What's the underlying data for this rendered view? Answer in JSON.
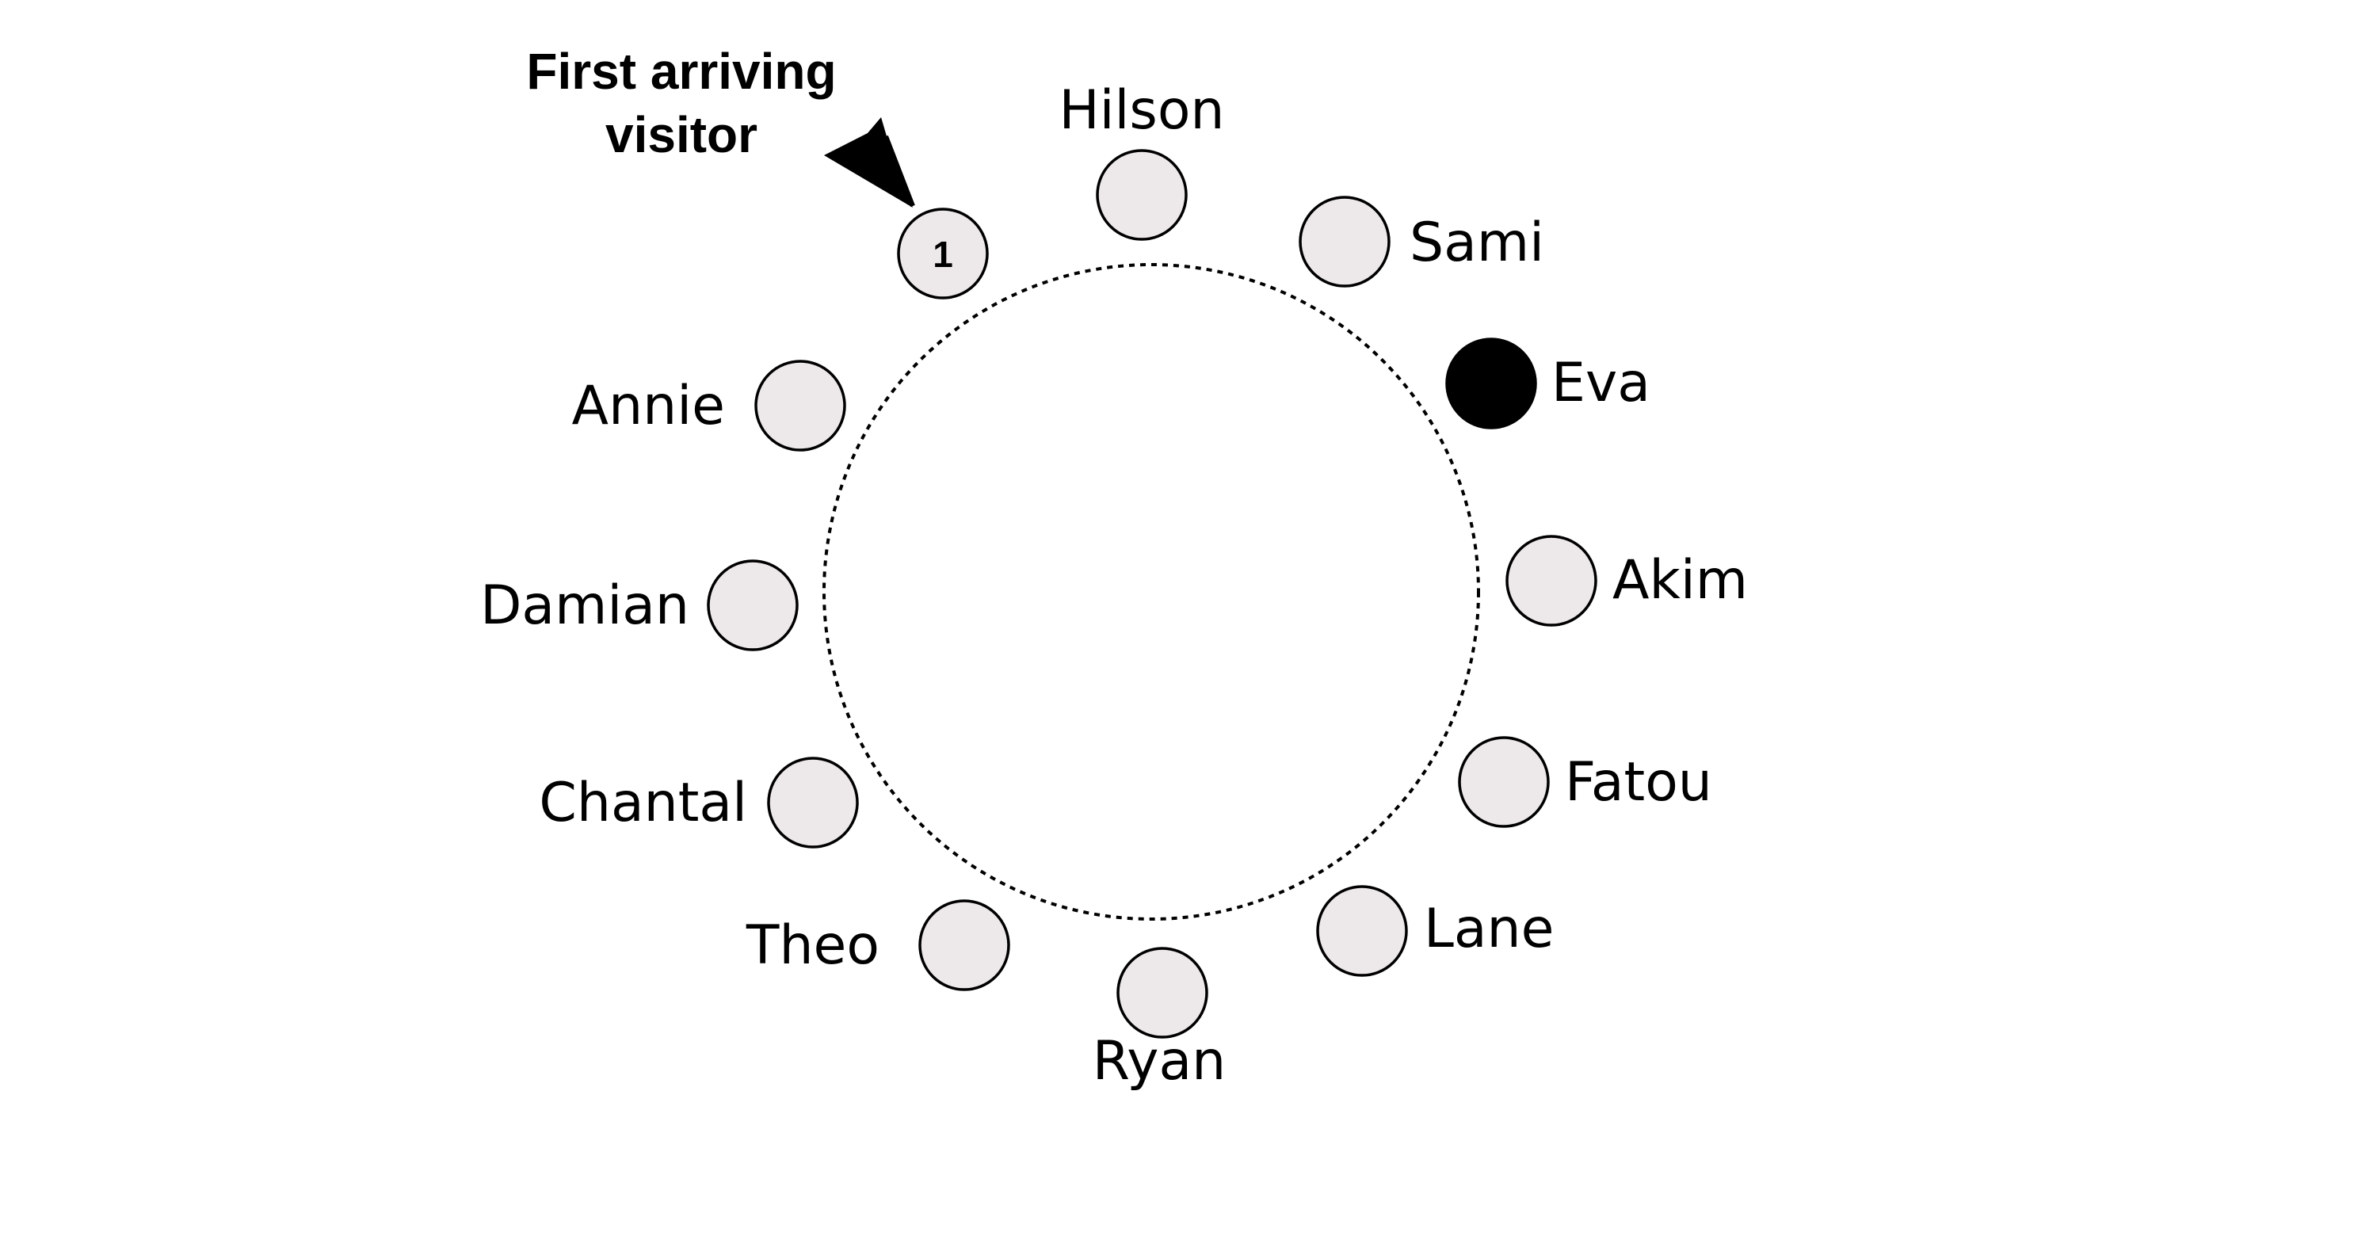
{
  "callout": {
    "line1": "First arriving",
    "line2": "visitor"
  },
  "first_seat_number": "1",
  "names": {
    "hilson": "Hilson",
    "sami": "Sami",
    "eva": "Eva",
    "akim": "Akim",
    "fatou": "Fatou",
    "lane": "Lane",
    "ryan": "Ryan",
    "theo": "Theo",
    "chantal": "Chantal",
    "damian": "Damian",
    "annie": "Annie"
  },
  "colors": {
    "empty_seat": "#ede8ea",
    "highlighted_seat": "#000000",
    "table_outline": "#000000"
  }
}
